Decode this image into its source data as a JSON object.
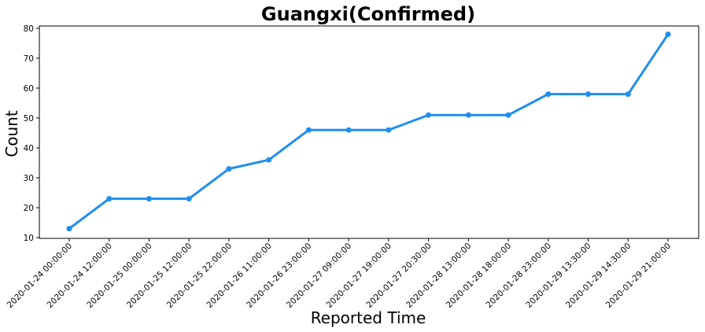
{
  "chart_data": {
    "type": "line",
    "title": "Guangxi(Confirmed)",
    "xlabel": "Reported Time",
    "ylabel": "Count",
    "categories": [
      "2020-01-24 00:00:00",
      "2020-01-24 12:00:00",
      "2020-01-25 00:00:00",
      "2020-01-25 12:00:00",
      "2020-01-25 22:00:00",
      "2020-01-26 11:00:00",
      "2020-01-26 23:00:00",
      "2020-01-27 09:00:00",
      "2020-01-27 19:00:00",
      "2020-01-27 20:30:00",
      "2020-01-28 13:00:00",
      "2020-01-28 18:00:00",
      "2020-01-28 23:00:00",
      "2020-01-29 13:30:00",
      "2020-01-29 14:30:00",
      "2020-01-29 21:00:00"
    ],
    "values": [
      13,
      23,
      23,
      23,
      33,
      36,
      46,
      46,
      46,
      51,
      51,
      51,
      58,
      58,
      58,
      78
    ],
    "yticks": [
      10,
      20,
      30,
      40,
      50,
      60,
      70,
      80
    ],
    "ylim": [
      10,
      81
    ],
    "grid": false,
    "line_color": "#1f8ef1"
  }
}
